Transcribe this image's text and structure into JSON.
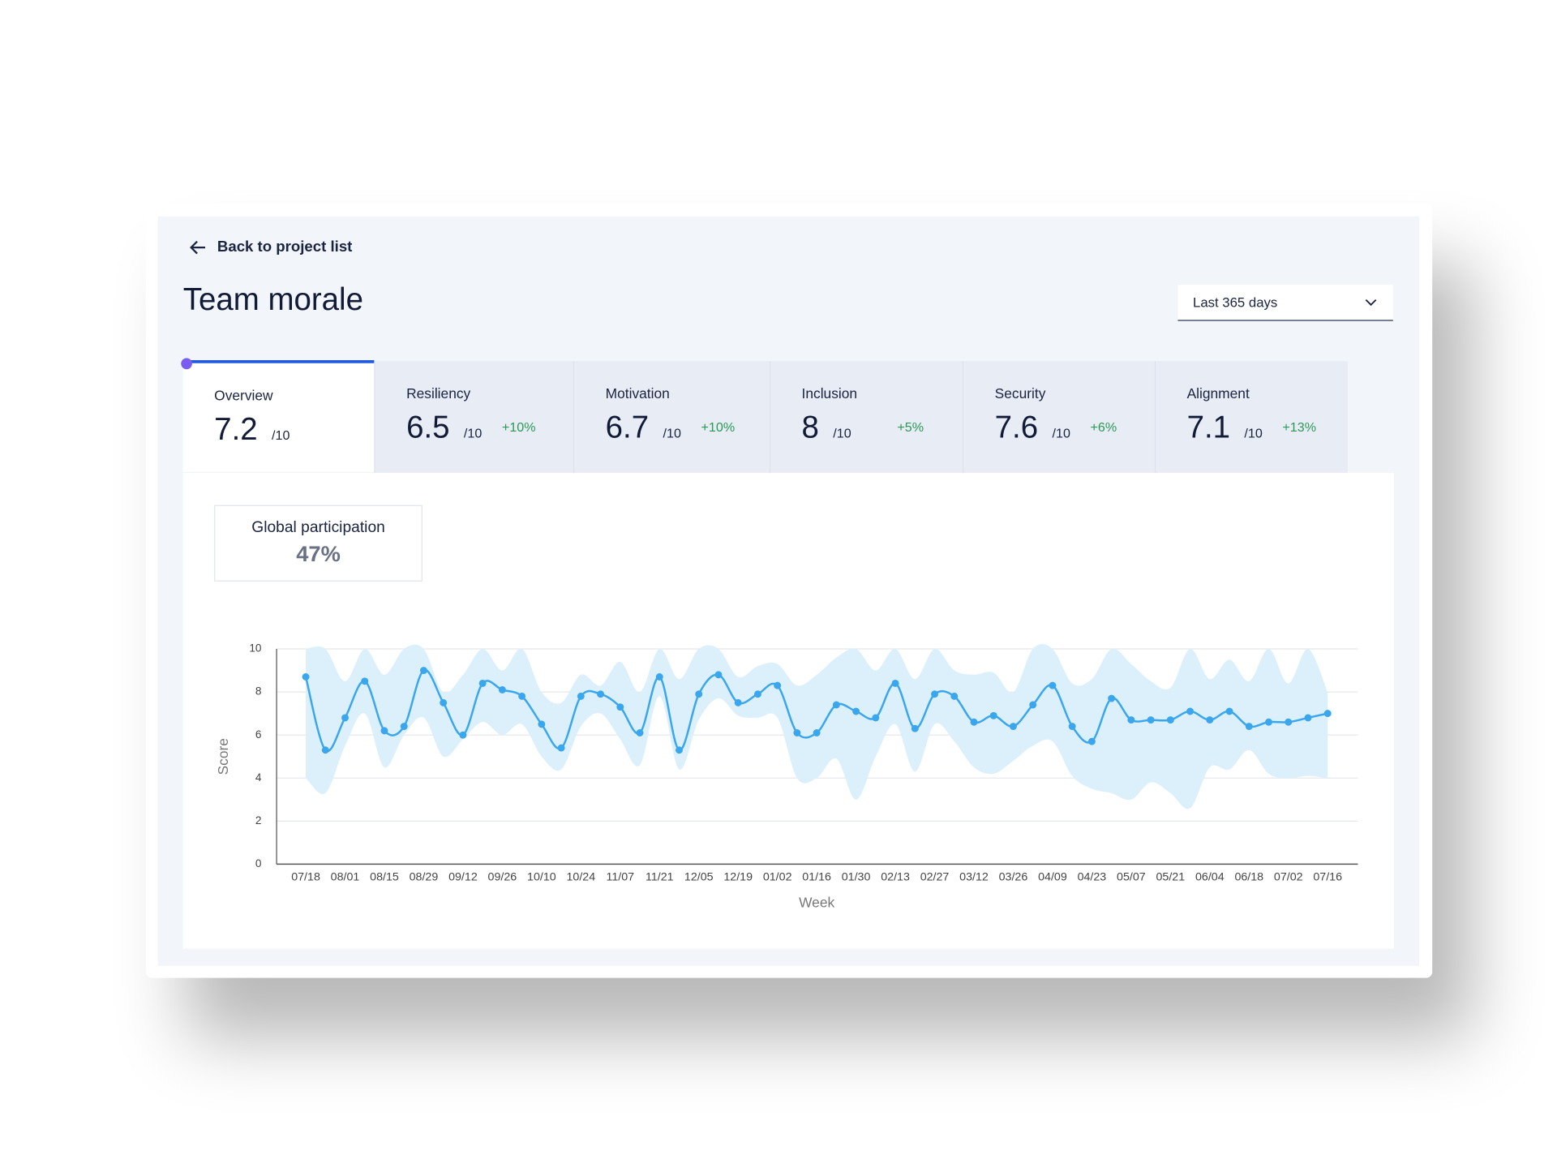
{
  "header": {
    "back_link": "Back to project list",
    "title": "Team morale",
    "period": "Last 365 days"
  },
  "tabs": [
    {
      "label": "Overview",
      "score": "7.2",
      "scale": "/10"
    },
    {
      "label": "Resiliency",
      "score": "6.5",
      "scale": "/10",
      "change": "+10%"
    },
    {
      "label": "Motivation",
      "score": "6.7",
      "scale": "/10",
      "change": "+10%"
    },
    {
      "label": "Inclusion",
      "score": "8",
      "scale": "/10",
      "change": "+5%"
    },
    {
      "label": "Security",
      "score": "7.6",
      "scale": "/10",
      "change": "+6%"
    },
    {
      "label": "Alignment",
      "score": "7.1",
      "scale": "/10",
      "change": "+13%"
    }
  ],
  "participation": {
    "label": "Global participation",
    "value": "47%"
  },
  "chart_data": {
    "type": "line",
    "x_label": "Week",
    "y_label": "Score",
    "color": "#3aa6ee",
    "band_color": "#dcf0fc",
    "grid": true,
    "categories": [
      "07/18",
      null,
      "08/01",
      null,
      "08/15",
      null,
      "08/29",
      null,
      "09/12",
      null,
      "09/26",
      null,
      "10/10",
      null,
      "10/24",
      null,
      "11/07",
      null,
      "11/21",
      null,
      "12/05",
      null,
      "12/19",
      null,
      "01/02",
      null,
      "01/16",
      null,
      "01/30",
      null,
      "02/13",
      null,
      "02/27",
      null,
      "03/12",
      null,
      "03/26",
      null,
      "04/09",
      null,
      "04/23",
      null,
      "05/07",
      null,
      "05/21",
      null,
      "06/04",
      null,
      "06/18",
      null,
      "07/02",
      null,
      "07/16"
    ],
    "values": [
      8.7,
      5.3,
      6.8,
      8.5,
      6.2,
      6.4,
      9.0,
      7.5,
      6.0,
      8.4,
      8.1,
      7.8,
      6.5,
      5.4,
      7.8,
      7.9,
      7.3,
      6.1,
      8.7,
      5.3,
      7.9,
      8.8,
      7.5,
      7.9,
      8.3,
      6.1,
      6.1,
      7.4,
      7.1,
      6.8,
      8.4,
      6.3,
      7.9,
      7.8,
      6.6,
      6.9,
      6.4,
      7.4,
      8.3,
      6.4,
      5.7,
      7.7,
      6.7,
      6.7,
      6.7,
      7.1,
      6.7,
      7.1,
      6.4,
      6.6,
      6.6,
      6.8,
      7.0
    ],
    "band_upper": [
      10,
      10,
      8.5,
      10,
      8.8,
      10,
      10,
      8,
      8.8,
      10,
      9,
      10,
      8,
      7.5,
      8.8,
      8.3,
      9.4,
      8,
      10,
      8.6,
      10,
      10,
      8.7,
      9.2,
      9.3,
      8.3,
      8.8,
      9.6,
      10,
      9,
      10,
      8.6,
      10,
      9,
      8.8,
      8.9,
      8,
      10,
      10,
      8.4,
      8.6,
      10,
      9.3,
      8.5,
      8.2,
      10,
      8.6,
      9.5,
      8.5,
      10,
      8.4,
      10,
      8
    ],
    "band_lower": [
      4,
      3.3,
      5.5,
      7,
      4.5,
      6,
      6.8,
      5,
      5.8,
      6.6,
      6,
      6.5,
      5,
      4.4,
      6.4,
      7,
      5.8,
      4.6,
      7.8,
      4.4,
      6.7,
      7.7,
      6.9,
      6.8,
      6.8,
      4,
      4,
      4.9,
      3,
      5,
      6.5,
      4.3,
      6.5,
      5.7,
      4.5,
      4.2,
      4.8,
      5.5,
      5.7,
      4.1,
      3.5,
      3.3,
      3,
      3.8,
      3.3,
      2.6,
      4.5,
      4.4,
      5.3,
      4.2,
      4,
      4.1,
      4
    ],
    "ylim": [
      0,
      10
    ],
    "yticks": [
      0,
      2,
      4,
      6,
      8,
      10
    ]
  }
}
